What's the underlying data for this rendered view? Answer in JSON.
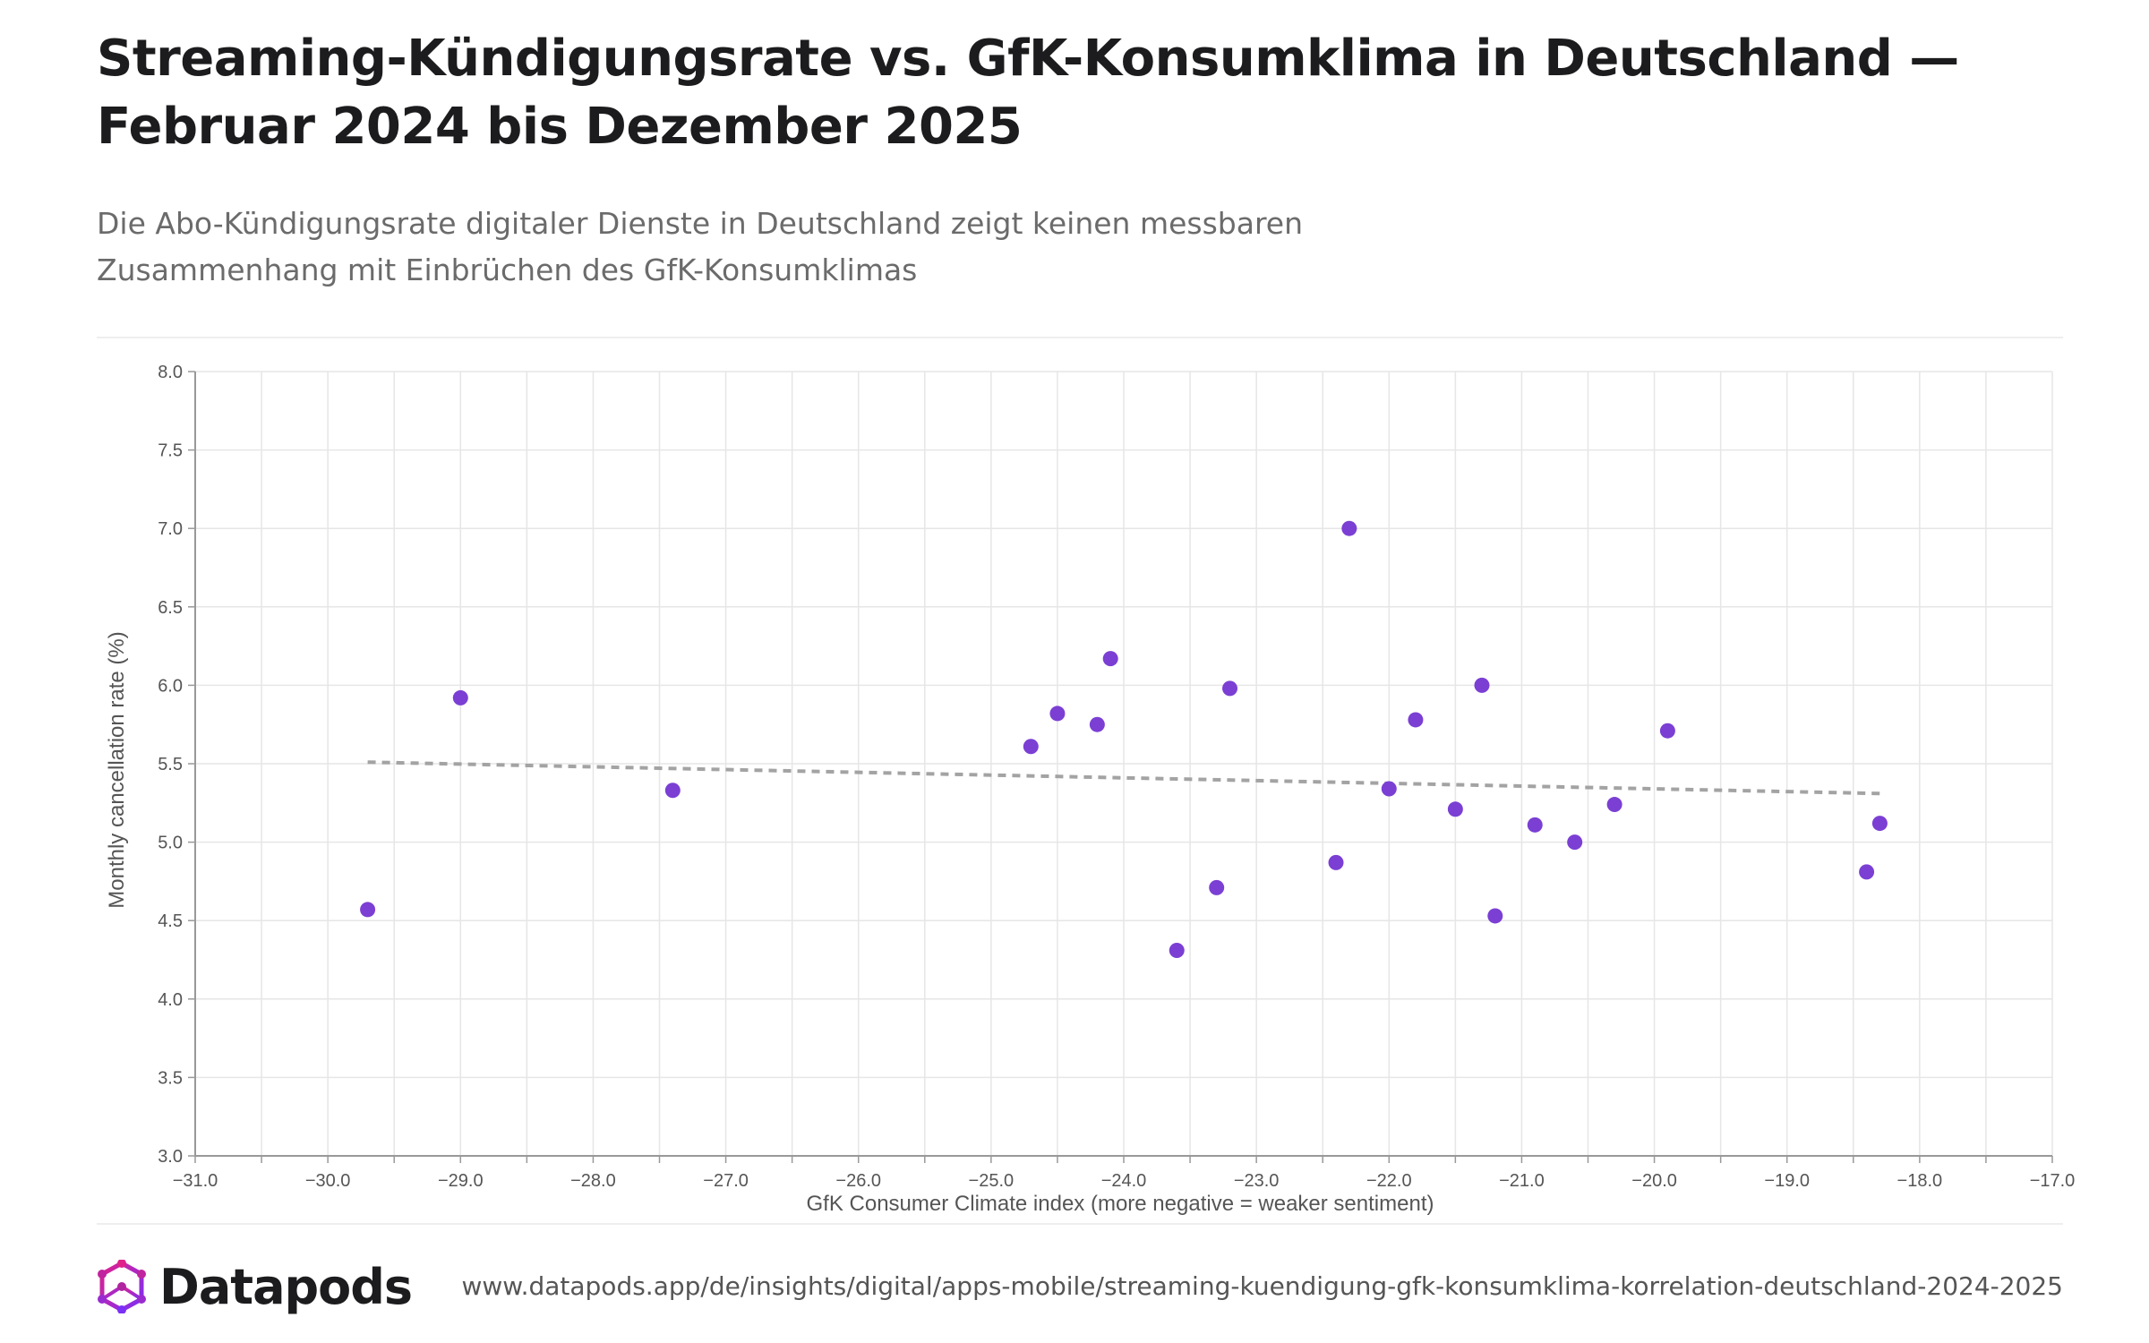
{
  "header": {
    "title": "Streaming-Kündigungsrate vs. GfK-Konsumklima in Deutschland — Februar 2024 bis Dezember 2025",
    "subtitle": "Die Abo-Kündigungsrate digitaler Dienste in Deutschland zeigt keinen messbaren Zusammenhang mit Einbrüchen des GfK-Konsumklimas"
  },
  "colors": {
    "point": "#7b3fd4",
    "trend": "#a3a3a3",
    "grid": "#e6e6e6",
    "axis": "#999999"
  },
  "chart_data": {
    "type": "scatter",
    "xlabel": "GfK Consumer Climate index (more negative = weaker sentiment)",
    "ylabel": "Monthly cancellation rate (%)",
    "xlim": [
      -31.0,
      -17.0
    ],
    "ylim": [
      3.0,
      8.0
    ],
    "x_ticks": [
      "−31.0",
      "−30.0",
      "−29.0",
      "−28.0",
      "−27.0",
      "−26.0",
      "−25.0",
      "−24.0",
      "−23.0",
      "−22.0",
      "−21.0",
      "−20.0",
      "−19.0",
      "−18.0",
      "−17.0"
    ],
    "y_ticks": [
      "3.0",
      "3.5",
      "4.0",
      "4.5",
      "5.0",
      "5.5",
      "6.0",
      "6.5",
      "7.0",
      "7.5",
      "8.0"
    ],
    "grid": true,
    "points": [
      {
        "x": -29.7,
        "y": 4.57
      },
      {
        "x": -29.0,
        "y": 5.92
      },
      {
        "x": -27.4,
        "y": 5.33
      },
      {
        "x": -24.7,
        "y": 5.61
      },
      {
        "x": -24.5,
        "y": 5.82
      },
      {
        "x": -24.2,
        "y": 5.75
      },
      {
        "x": -24.1,
        "y": 6.17
      },
      {
        "x": -23.6,
        "y": 4.31
      },
      {
        "x": -23.3,
        "y": 4.71
      },
      {
        "x": -23.2,
        "y": 5.98
      },
      {
        "x": -22.4,
        "y": 4.87
      },
      {
        "x": -22.3,
        "y": 7.0
      },
      {
        "x": -22.0,
        "y": 5.34
      },
      {
        "x": -21.8,
        "y": 5.78
      },
      {
        "x": -21.5,
        "y": 5.21
      },
      {
        "x": -21.3,
        "y": 6.0
      },
      {
        "x": -21.2,
        "y": 4.53
      },
      {
        "x": -20.9,
        "y": 5.11
      },
      {
        "x": -20.6,
        "y": 5.0
      },
      {
        "x": -20.3,
        "y": 5.24
      },
      {
        "x": -19.9,
        "y": 5.71
      },
      {
        "x": -18.4,
        "y": 4.81
      },
      {
        "x": -18.3,
        "y": 5.12
      }
    ],
    "trendline": {
      "style": "dashed",
      "x": [
        -29.7,
        -18.3
      ],
      "y": [
        5.51,
        5.31
      ]
    }
  },
  "footer": {
    "brand": "Datapods",
    "url": "www.datapods.app/de/insights/digital/apps-mobile/streaming-kuendigung-gfk-konsumklima-korrelation-deutschland-2024-2025"
  }
}
